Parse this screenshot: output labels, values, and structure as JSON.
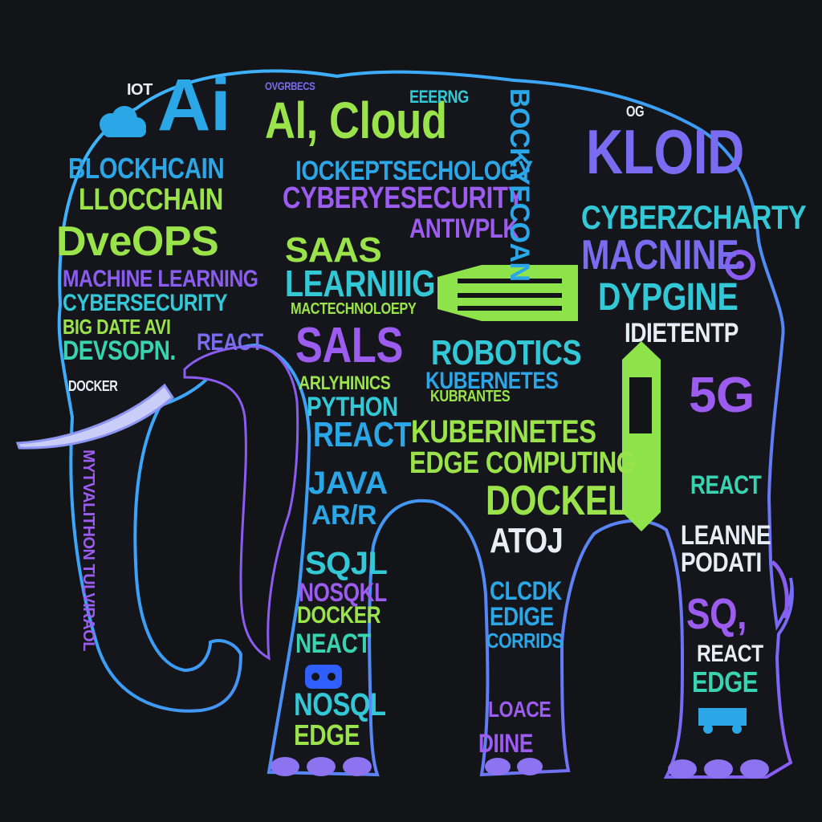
{
  "palette": {
    "background": "#121417",
    "outline": "#38b6ff",
    "blue": "#2ba6e6",
    "cyan": "#33c8d6",
    "lime": "#9ae34a",
    "purple": "#9d5cf0",
    "violet": "#7a6cf0",
    "teal": "#38d4b0",
    "tusk": "#8c95f2",
    "toenail": "#8d73ef"
  },
  "words": {
    "iot": "IOT",
    "ai_big": "Ai",
    "ai_cloud": "Al, Cloud",
    "oversecs": "OVGRBECS",
    "eeering": "EEERNG",
    "blockhcain": "BLOCKHCAIN",
    "llocchain": "LLOCCHAIN",
    "devops": "DveOPS",
    "ml": "MACHINE LEARNING",
    "cybersecurity": "CYBERSECURITY",
    "bigdata": "BIG DATE AVI",
    "devsopn": "DEVSOPN.",
    "react_small": "REACT",
    "docker_small": "DOCKER",
    "iockept": "IOCKEPTSECHOLOGY",
    "cyberyesecurity": "CYBERYESECURITY",
    "saas": "SAAS",
    "antivplk": "ANTIVPLK",
    "learning": "LEARNIIIG",
    "technology": "MACTECHNOLOEPY",
    "sals": "SALS",
    "robotics": "ROBOTICS",
    "kubernetes1": "KUBERNETES",
    "kubernetes2": "KUBRANTES",
    "kuberinetes": "KUBERINETES",
    "edge_computing": "EDGE COMPUTING",
    "arlyhinics": "ARLYHINICS",
    "python": "PYTHON",
    "react_mid": "REACT",
    "java": "JAVA",
    "arvr": "AR/R",
    "sqjl": "SQJL",
    "nosqkl": "NOSQKL",
    "docker_leg": "DOCKER",
    "neact": "NEACT",
    "nosql": "NOSQL",
    "edge_leg": "EDGE",
    "dockel": "DOCKEL",
    "atoj": "ATOJ",
    "clcdk": "CLCDK",
    "edige": "EDIGE",
    "corrids": "CORRIDS",
    "loace": "LOACE",
    "diine": "DIINE",
    "kloid": "KLOID",
    "og": "OG",
    "cyberzcharty": "CYBERZCHARTY",
    "macnine": "MACNINE",
    "dypgine": "DYPGINE",
    "idietentp": "IDIETENTP",
    "fiveg": "5G",
    "react_right": "REACT",
    "leanne": "LEANNE",
    "podati": "PODATI",
    "sq": "SQ,",
    "react_rleg": "REACT",
    "edge_rleg": "EDGE",
    "bockyecoan": "BOCKYECOAN",
    "trunk_text": "MYTVALITHON TULVIRAOL"
  }
}
